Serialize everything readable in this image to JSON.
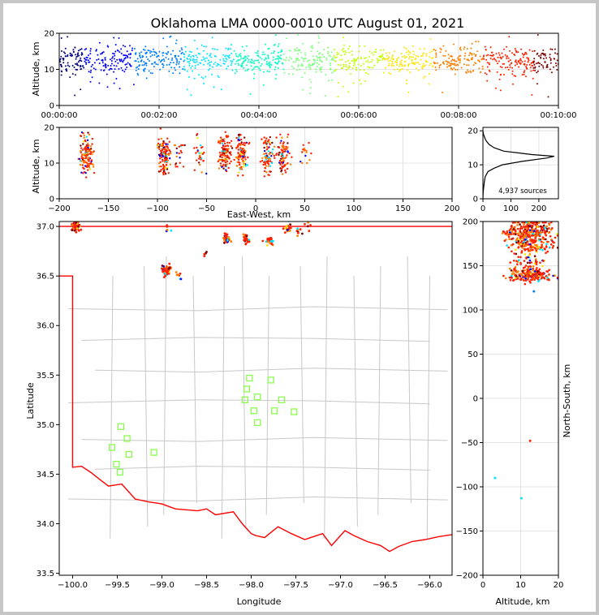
{
  "figure": {
    "title": "Oklahoma LMA 0000-0010 UTC August 01, 2021",
    "colormap": [
      "#00007f",
      "#0000ff",
      "#007fff",
      "#00e5ff",
      "#00ffc0",
      "#7fff7f",
      "#c0ff00",
      "#ffe500",
      "#ff7f00",
      "#ff2000",
      "#7f0000"
    ]
  },
  "chart_data": [
    {
      "id": "time_altitude",
      "type": "scatter",
      "xlabel": "",
      "ylabel": "Altitude, km",
      "x_tick_labels": [
        "00:00:00",
        "00:02:00",
        "00:04:00",
        "00:06:00",
        "00:08:00",
        "00:10:00"
      ],
      "xlim_seconds": [
        0,
        600
      ],
      "ylim": [
        0,
        20
      ],
      "y_ticks": [
        0,
        10,
        20
      ],
      "grid": true,
      "color_encoding": "time",
      "series_summary": {
        "altitude_band_km": [
          8,
          17
        ],
        "altitude_center_km": 12.5,
        "outliers_km": [
          2,
          20
        ]
      }
    },
    {
      "id": "ew_altitude",
      "type": "scatter",
      "xlabel": "East-West, km",
      "ylabel": "Altitude, km",
      "xlim": [
        -200,
        200
      ],
      "x_ticks": [
        -200,
        -150,
        -100,
        -50,
        0,
        50,
        100,
        150,
        200
      ],
      "ylim": [
        0,
        20
      ],
      "y_ticks": [
        0,
        10,
        20
      ],
      "grid": true,
      "clusters": [
        {
          "x_km": -172,
          "alt_range": [
            6,
            20
          ],
          "n": 140
        },
        {
          "x_km": -93,
          "alt_range": [
            3,
            20
          ],
          "n": 130
        },
        {
          "x_km": -78,
          "alt_range": [
            9,
            15
          ],
          "n": 20
        },
        {
          "x_km": -57,
          "alt_range": [
            7,
            20
          ],
          "n": 30
        },
        {
          "x_km": -31,
          "alt_range": [
            3,
            20
          ],
          "n": 120
        },
        {
          "x_km": -15,
          "alt_range": [
            3,
            18
          ],
          "n": 100
        },
        {
          "x_km": 12,
          "alt_range": [
            3,
            19
          ],
          "n": 80
        },
        {
          "x_km": 28,
          "alt_range": [
            4,
            18
          ],
          "n": 80
        },
        {
          "x_km": 52,
          "alt_range": [
            10,
            17
          ],
          "n": 15
        }
      ]
    },
    {
      "id": "altitude_histogram",
      "type": "line",
      "xlim": [
        0,
        270
      ],
      "x_ticks": [
        0,
        100,
        200
      ],
      "ylim": [
        0,
        21
      ],
      "y_ticks": [
        0,
        10,
        20
      ],
      "annotation": "4,937 sources",
      "profile": [
        {
          "alt": 0,
          "count": 0
        },
        {
          "alt": 2,
          "count": 1
        },
        {
          "alt": 3.5,
          "count": 3
        },
        {
          "alt": 5,
          "count": 5
        },
        {
          "alt": 6.5,
          "count": 8
        },
        {
          "alt": 8,
          "count": 18
        },
        {
          "alt": 9,
          "count": 40
        },
        {
          "alt": 10,
          "count": 70
        },
        {
          "alt": 11,
          "count": 140
        },
        {
          "alt": 12,
          "count": 230
        },
        {
          "alt": 12.5,
          "count": 255
        },
        {
          "alt": 13,
          "count": 175
        },
        {
          "alt": 14,
          "count": 75
        },
        {
          "alt": 15,
          "count": 40
        },
        {
          "alt": 16,
          "count": 22
        },
        {
          "alt": 17,
          "count": 12
        },
        {
          "alt": 18,
          "count": 6
        },
        {
          "alt": 19,
          "count": 2
        },
        {
          "alt": 20,
          "count": 0
        }
      ]
    },
    {
      "id": "plan_view",
      "type": "scatter",
      "xlabel": "Longitude",
      "ylabel": "Latitude",
      "xlim": [
        -100.15,
        -95.75
      ],
      "x_ticks": [
        -100.0,
        -99.5,
        -99.0,
        -98.5,
        -98.0,
        -97.5,
        -97.0,
        -96.5,
        -96.0
      ],
      "x_tick_labels": [
        "−100.0",
        "−99.5",
        "−99.0",
        "−98.5",
        "−98.0",
        "−97.5",
        "−97.0",
        "−96.5",
        "−96.0"
      ],
      "ylim": [
        33.48,
        37.05
      ],
      "y_ticks": [
        33.5,
        34.0,
        34.5,
        35.0,
        35.5,
        36.0,
        36.5,
        37.0
      ],
      "y_tick_labels": [
        "33.5",
        "34.0",
        "34.5",
        "35.0",
        "35.5",
        "36.0",
        "36.5",
        "37.0"
      ],
      "clusters": [
        {
          "lon": -99.97,
          "lat": 37.01,
          "n": 60
        },
        {
          "lon": -98.95,
          "lat": 36.56,
          "n": 50
        },
        {
          "lon": -98.82,
          "lat": 36.52,
          "n": 8
        },
        {
          "lon": -98.27,
          "lat": 36.88,
          "n": 30
        },
        {
          "lon": -98.05,
          "lat": 36.87,
          "n": 25
        },
        {
          "lon": -97.8,
          "lat": 36.86,
          "n": 20
        },
        {
          "lon": -97.58,
          "lat": 36.98,
          "n": 20
        },
        {
          "lon": -97.48,
          "lat": 36.94,
          "n": 8
        },
        {
          "lon": -98.93,
          "lat": 36.98,
          "n": 5
        },
        {
          "lon": -97.35,
          "lat": 37.03,
          "n": 5
        },
        {
          "lon": -98.5,
          "lat": 36.7,
          "n": 4
        },
        {
          "lon": -98.3,
          "lat": 36.9,
          "n": 4
        }
      ],
      "stations": [
        {
          "lon": -98.02,
          "lat": 35.47
        },
        {
          "lon": -97.78,
          "lat": 35.45
        },
        {
          "lon": -98.05,
          "lat": 35.36
        },
        {
          "lon": -97.93,
          "lat": 35.28
        },
        {
          "lon": -98.07,
          "lat": 35.25
        },
        {
          "lon": -97.66,
          "lat": 35.25
        },
        {
          "lon": -97.97,
          "lat": 35.14
        },
        {
          "lon": -97.74,
          "lat": 35.14
        },
        {
          "lon": -97.52,
          "lat": 35.13
        },
        {
          "lon": -97.93,
          "lat": 35.02
        },
        {
          "lon": -99.46,
          "lat": 34.98
        },
        {
          "lon": -99.39,
          "lat": 34.86
        },
        {
          "lon": -99.56,
          "lat": 34.77
        },
        {
          "lon": -99.37,
          "lat": 34.7
        },
        {
          "lon": -99.09,
          "lat": 34.72
        },
        {
          "lon": -99.51,
          "lat": 34.6
        },
        {
          "lon": -99.47,
          "lat": 34.52
        }
      ]
    },
    {
      "id": "altitude_north_south",
      "type": "scatter",
      "xlabel": "Altitude, km",
      "ylabel": "North-South, km",
      "xlim": [
        0,
        20
      ],
      "x_ticks": [
        0,
        10,
        20
      ],
      "ylim": [
        -200,
        200
      ],
      "y_ticks": [
        -200,
        -150,
        -100,
        -50,
        0,
        50,
        100,
        150,
        200
      ],
      "y_tick_labels": [
        "−200",
        "−150",
        "−100",
        "−50",
        "0",
        "50",
        "100",
        "150",
        "200"
      ]
    }
  ]
}
